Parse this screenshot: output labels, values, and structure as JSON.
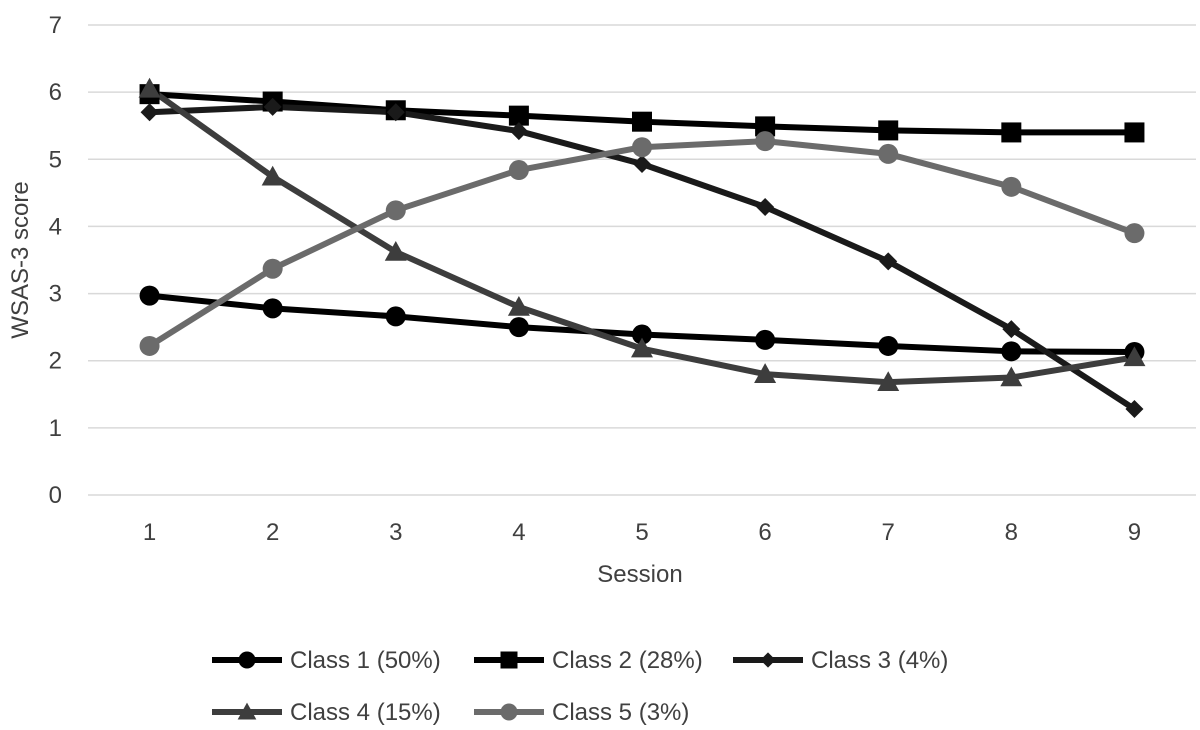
{
  "chart_data": {
    "type": "line",
    "title": "",
    "xlabel": "Session",
    "ylabel": "WSAS-3 score",
    "x": [
      1,
      2,
      3,
      4,
      5,
      6,
      7,
      8,
      9
    ],
    "ylim": [
      0,
      7
    ],
    "yticks": [
      0,
      1,
      2,
      3,
      4,
      5,
      6,
      7
    ],
    "grid": true,
    "legend_position": "bottom",
    "series": [
      {
        "name": "Class 1 (50%)",
        "marker": "circle",
        "color": "#000000",
        "values": [
          2.97,
          2.78,
          2.66,
          2.5,
          2.39,
          2.31,
          2.22,
          2.14,
          2.13
        ]
      },
      {
        "name": "Class 2 (28%)",
        "marker": "square",
        "color": "#000000",
        "values": [
          5.97,
          5.86,
          5.73,
          5.65,
          5.56,
          5.49,
          5.43,
          5.4,
          5.4
        ]
      },
      {
        "name": "Class 3 (4%)",
        "marker": "diamond",
        "color": "#1a1a1a",
        "values": [
          5.7,
          5.78,
          5.7,
          5.42,
          4.93,
          4.29,
          3.48,
          2.47,
          1.28
        ]
      },
      {
        "name": "Class 4 (15%)",
        "marker": "triangle",
        "color": "#3d3d3d",
        "values": [
          6.05,
          4.74,
          3.62,
          2.8,
          2.18,
          1.8,
          1.68,
          1.75,
          2.05
        ]
      },
      {
        "name": "Class 5 (3%)",
        "marker": "circle",
        "color": "#6b6b6b",
        "values": [
          2.22,
          3.37,
          4.24,
          4.84,
          5.18,
          5.27,
          5.08,
          4.59,
          3.9
        ]
      }
    ]
  }
}
